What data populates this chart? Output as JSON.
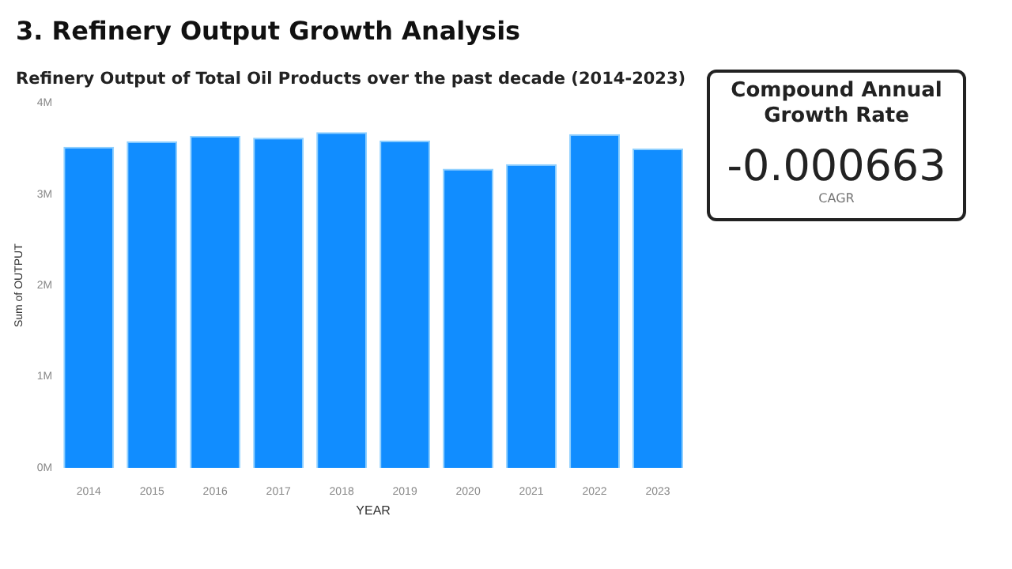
{
  "chart_data": [
    {
      "type": "bar",
      "title": "3. Refinery Output Growth Analysis",
      "subtitle": "Refinery Output of Total Oil Products over the past decade (2014-2023)",
      "xlabel": "YEAR",
      "ylabel": "Sum of OUTPUT",
      "categories": [
        "2014",
        "2015",
        "2016",
        "2017",
        "2018",
        "2019",
        "2020",
        "2021",
        "2022",
        "2023"
      ],
      "values": [
        3.52,
        3.58,
        3.64,
        3.62,
        3.68,
        3.59,
        3.28,
        3.33,
        3.66,
        3.5
      ],
      "color": "#118dff",
      "ylim": [
        0,
        4
      ],
      "yticks": [
        {
          "value": 0,
          "label": "0M"
        },
        {
          "value": 1,
          "label": "1M"
        },
        {
          "value": 2,
          "label": "2M"
        },
        {
          "value": 3,
          "label": "3M"
        },
        {
          "value": 4,
          "label": "4M"
        }
      ],
      "grid": false,
      "legend": false
    },
    {
      "type": "other",
      "title": "Compound Annual Growth Rate",
      "annotations": [
        "-0.000663",
        "CAGR"
      ]
    }
  ]
}
